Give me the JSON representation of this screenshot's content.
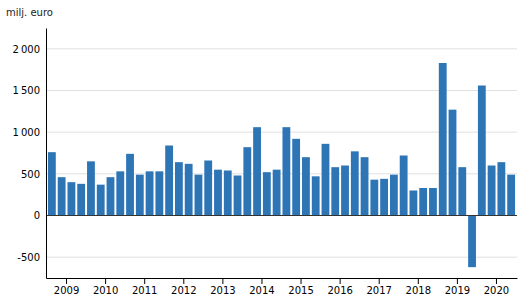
{
  "chart_data": {
    "type": "bar",
    "ylabel": "milj. euro",
    "categories": [
      "2009",
      null,
      null,
      null,
      "2010",
      null,
      null,
      null,
      "2011",
      null,
      null,
      null,
      "2012",
      null,
      null,
      null,
      "2013",
      null,
      null,
      null,
      "2014",
      null,
      null,
      null,
      "2015",
      null,
      null,
      null,
      "2016",
      null,
      null,
      null,
      "2017",
      null,
      null,
      null,
      "2018",
      null,
      null,
      null,
      "2019",
      null,
      null,
      null,
      "2020",
      null,
      null,
      null
    ],
    "values": [
      760,
      460,
      400,
      380,
      650,
      370,
      460,
      530,
      740,
      490,
      530,
      530,
      840,
      640,
      620,
      490,
      660,
      550,
      540,
      480,
      820,
      1060,
      520,
      550,
      1060,
      920,
      700,
      470,
      860,
      580,
      600,
      770,
      700,
      430,
      440,
      490,
      720,
      300,
      330,
      330,
      1830,
      1270,
      580,
      -620,
      1560,
      600,
      640,
      490
    ],
    "color": "#2e75b6",
    "ylim": [
      -750,
      2250
    ],
    "yticks": [
      -500,
      0,
      500,
      {
        "value": 1000,
        "label": "1 000"
      },
      {
        "value": 1500,
        "label": "1 500"
      },
      {
        "value": 2000,
        "label": "2 000"
      }
    ],
    "grid": true
  }
}
